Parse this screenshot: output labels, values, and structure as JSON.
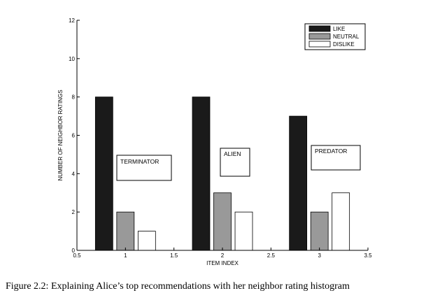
{
  "chart_data": {
    "type": "bar",
    "x": [
      1,
      2,
      3
    ],
    "series": [
      {
        "name": "LIKE",
        "values": [
          8,
          8,
          7
        ],
        "color": "#1a1a1a"
      },
      {
        "name": "NEUTRAL",
        "values": [
          2,
          3,
          2
        ],
        "color": "#999999"
      },
      {
        "name": "DISLIKE",
        "values": [
          1,
          2,
          3
        ],
        "color": "#ffffff"
      }
    ],
    "bar_offsets": [
      -0.22,
      0,
      0.22
    ],
    "bar_width": 0.18,
    "xlim": [
      0.5,
      3.5
    ],
    "ylim": [
      0,
      12
    ],
    "xticks": [
      "0.5",
      "1",
      "1.5",
      "2",
      "2.5",
      "3",
      "3.5"
    ],
    "xtick_values": [
      0.5,
      1,
      1.5,
      2,
      2.5,
      3,
      3.5
    ],
    "yticks": [
      "0",
      "2",
      "4",
      "6",
      "8",
      "10",
      "12"
    ],
    "ytick_values": [
      0,
      2,
      4,
      6,
      8,
      10,
      12
    ],
    "xlabel": "ITEM INDEX",
    "ylabel": "NUMBER OF NEIGHBOR RATINGS",
    "legend_position": "top-right",
    "grid": false,
    "annotations": [
      {
        "text": "TERMINATOR",
        "x": 1.18
      },
      {
        "text": "ALIEN",
        "x": 2.12
      },
      {
        "text": "PREDATOR",
        "x": 3.14
      }
    ]
  },
  "caption": "Figure 2.2: Explaining Alice’s top recommendations with her neighbor rating histogram"
}
